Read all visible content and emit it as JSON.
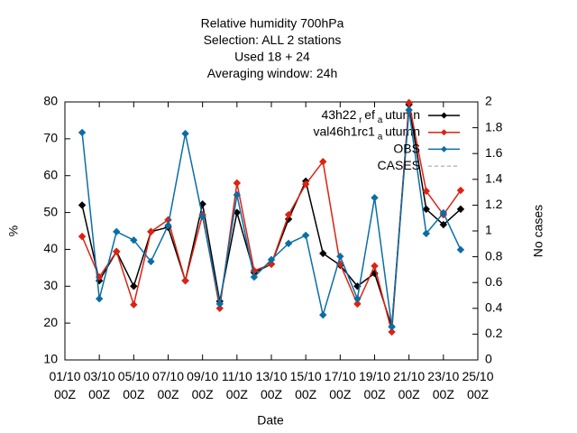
{
  "chart_data": {
    "type": "line",
    "title": [
      "Relative humidity 700hPa",
      "Selection: ALL       2 stations",
      "Used  18  + 24",
      "Averaging window: 24h"
    ],
    "xlabel": "Date",
    "ylabel": "%",
    "y2label": "No cases",
    "x": [
      2,
      3,
      4,
      5,
      6,
      7,
      8,
      9,
      10,
      11,
      12,
      13,
      14,
      15,
      16,
      17,
      18,
      19,
      20,
      21,
      22,
      23,
      24
    ],
    "xlim": [
      1,
      25
    ],
    "xticks": [
      {
        "value": 1,
        "label": "01/10\n00Z"
      },
      {
        "value": 3,
        "label": "03/10\n00Z"
      },
      {
        "value": 5,
        "label": "05/10\n00Z"
      },
      {
        "value": 7,
        "label": "07/10\n00Z"
      },
      {
        "value": 9,
        "label": "09/10\n00Z"
      },
      {
        "value": 11,
        "label": "11/10\n00Z"
      },
      {
        "value": 13,
        "label": "13/10\n00Z"
      },
      {
        "value": 15,
        "label": "15/10\n00Z"
      },
      {
        "value": 17,
        "label": "17/10\n00Z"
      },
      {
        "value": 19,
        "label": "19/10\n00Z"
      },
      {
        "value": 21,
        "label": "21/10\n00Z"
      },
      {
        "value": 23,
        "label": "23/10\n00Z"
      },
      {
        "value": 25,
        "label": "25/10\n00Z"
      }
    ],
    "ylim": [
      10,
      80
    ],
    "yticks": [
      10,
      20,
      30,
      40,
      50,
      60,
      70,
      80
    ],
    "y2lim": [
      0,
      2
    ],
    "y2ticks": [
      0,
      0.2,
      0.4,
      0.6,
      0.8,
      1,
      1.2,
      1.4,
      1.6,
      1.8,
      2
    ],
    "legend": "top-right",
    "series": [
      {
        "name": "43h22_ref_autumn",
        "color": "#000000",
        "values": [
          52,
          31.5,
          39.4,
          30,
          44.8,
          46,
          31.5,
          52.3,
          25.9,
          50,
          33.7,
          36,
          48.2,
          58.5,
          38.9,
          35.7,
          30,
          33.5,
          19,
          79.3,
          50.9,
          46.7,
          50.9
        ]
      },
      {
        "name": "val46h1rc1_autumn",
        "color": "#dd2211",
        "values": [
          43.5,
          32.5,
          39.4,
          25,
          44.8,
          48,
          31.5,
          49.4,
          24,
          58,
          34.2,
          36,
          49.4,
          57.7,
          63.8,
          36,
          25.2,
          35.5,
          17.6,
          79.8,
          55.8,
          49.4,
          56
        ]
      },
      {
        "name": "OBS",
        "color": "#0a6ea5",
        "values": [
          71.7,
          26.6,
          44.8,
          42.5,
          36.7,
          46.5,
          71.4,
          48.9,
          25.2,
          54.8,
          32.5,
          37.2,
          41.6,
          43.8,
          22.2,
          38.1,
          26.6,
          54,
          19,
          77.8,
          44.3,
          49.9,
          39.9
        ]
      },
      {
        "name": "CASES",
        "color": "#999999",
        "dashed": true,
        "axis": "y2",
        "values": [
          null,
          null,
          null,
          null,
          null,
          null,
          null,
          null,
          null,
          null,
          null,
          null,
          null,
          null,
          null,
          null,
          null,
          null,
          null,
          null,
          null,
          null,
          null
        ]
      }
    ]
  }
}
